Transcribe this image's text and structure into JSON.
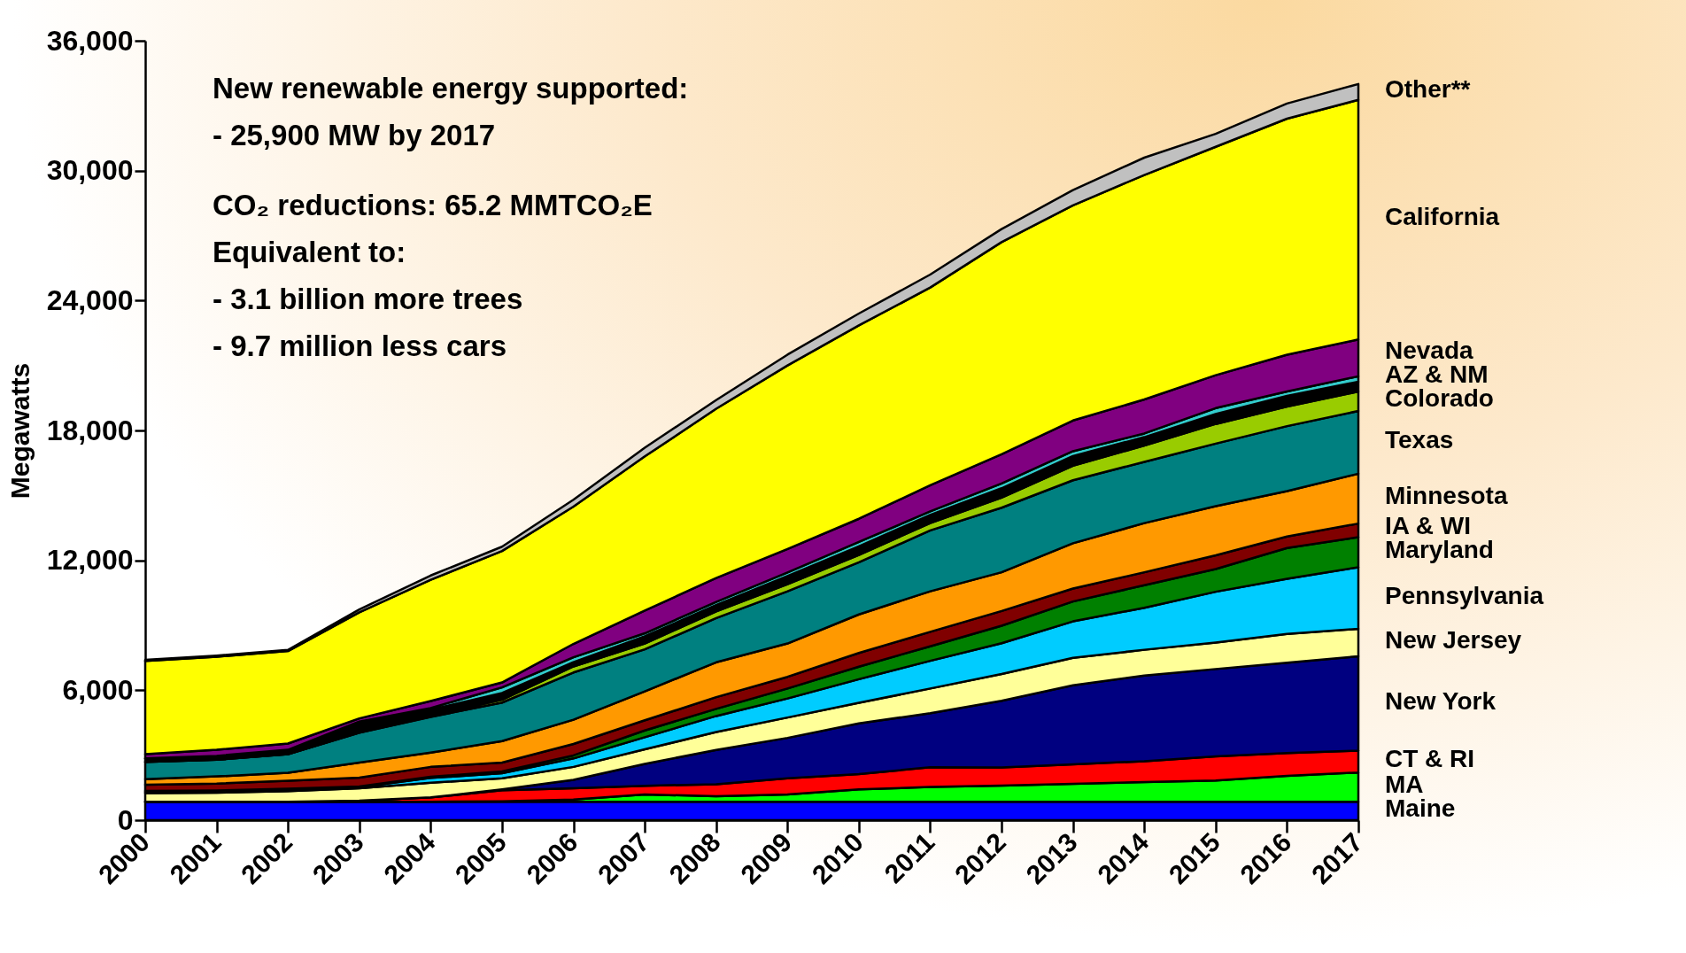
{
  "chart_data": {
    "type": "area",
    "stacked": true,
    "ylabel": "Megawatts",
    "ylim": [
      0,
      36000
    ],
    "yticks": [
      0,
      {
        "value": 6000,
        "label": "6,000"
      },
      {
        "value": 12000,
        "label": "12,000"
      },
      {
        "value": 18000,
        "label": "18,000"
      },
      {
        "value": 24000,
        "label": "24,000"
      },
      {
        "value": 30000,
        "label": "30,000"
      },
      {
        "value": 36000,
        "label": "36,000"
      }
    ],
    "legend": "right",
    "categories": [
      "2000",
      "2001",
      "2002",
      "2003",
      "2004",
      "2005",
      "2006",
      "2007",
      "2008",
      "2009",
      "2010",
      "2011",
      "2012",
      "2013",
      "2014",
      "2015",
      "2016",
      "2017"
    ],
    "annotations": [
      "New renewable energy supported:",
      "- 25,900 MW by 2017",
      "CO₂ reductions: 65.2 MMTCO₂E",
      "Equivalent to:",
      "- 3.1 billion more trees",
      "- 9.7 million less cars"
    ],
    "series": [
      {
        "name": "Maine",
        "color": "#0000ff",
        "values": [
          850,
          850,
          850,
          850,
          850,
          850,
          850,
          850,
          850,
          850,
          850,
          850,
          850,
          850,
          850,
          850,
          850,
          850
        ]
      },
      {
        "name": "MA",
        "color": "#00ff00",
        "values": [
          0,
          0,
          0,
          0,
          0,
          20,
          100,
          340,
          250,
          340,
          570,
          680,
          750,
          830,
          910,
          980,
          1200,
          1350
        ]
      },
      {
        "name": "CT & RI",
        "color": "#ff0000",
        "values": [
          0,
          0,
          0,
          50,
          200,
          510,
          520,
          400,
          560,
          740,
          710,
          910,
          830,
          900,
          960,
          1120,
          1050,
          1010
        ]
      },
      {
        "name": "New York",
        "color": "#000080",
        "values": [
          0,
          0,
          0,
          0,
          0,
          40,
          390,
          1010,
          1580,
          1870,
          2340,
          2500,
          3080,
          3650,
          3960,
          4030,
          4170,
          4360
        ]
      },
      {
        "name": "New Jersey",
        "color": "#ffff99",
        "values": [
          400,
          420,
          490,
          570,
          680,
          510,
          600,
          670,
          830,
          940,
          950,
          1140,
          1240,
          1270,
          1190,
          1220,
          1330,
          1270
        ]
      },
      {
        "name": "Pennsylvania",
        "color": "#00ccff",
        "values": [
          50,
          50,
          60,
          50,
          220,
          240,
          390,
          560,
          740,
          880,
          1090,
          1280,
          1420,
          1680,
          1940,
          2350,
          2550,
          2840
        ]
      },
      {
        "name": "Maryland",
        "color": "#008000",
        "values": [
          50,
          50,
          50,
          30,
          50,
          80,
          140,
          310,
          330,
          460,
          580,
          670,
          810,
          920,
          1040,
          1050,
          1420,
          1390
        ]
      },
      {
        "name": "IA & WI",
        "color": "#800000",
        "values": [
          290,
          320,
          370,
          410,
          460,
          410,
          530,
          470,
          540,
          540,
          630,
          670,
          680,
          600,
          600,
          630,
          530,
          630
        ]
      },
      {
        "name": "Minnesota",
        "color": "#ff9900",
        "values": [
          250,
          330,
          370,
          700,
          660,
          990,
          1120,
          1340,
          1610,
          1540,
          1780,
          1870,
          1790,
          2090,
          2270,
          2270,
          2100,
          2300
        ]
      },
      {
        "name": "Texas",
        "color": "#008080",
        "values": [
          800,
          770,
          860,
          1380,
          1650,
          1780,
          2180,
          1940,
          2040,
          2410,
          2410,
          2810,
          2980,
          2910,
          2830,
          2890,
          3000,
          2900
        ]
      },
      {
        "name": "Colorado",
        "color": "#99cc00",
        "values": [
          0,
          0,
          0,
          20,
          50,
          130,
          280,
          270,
          310,
          330,
          340,
          340,
          470,
          670,
          750,
          910,
          900,
          900
        ]
      },
      {
        "color": "#000000",
        "values": [
          160,
          160,
          150,
          440,
          280,
          310,
          200,
          330,
          290,
          370,
          400,
          380,
          430,
          450,
          390,
          460,
          500,
          450
        ]
      },
      {
        "name": "AZ & NM",
        "color": "#33cccc",
        "values": [
          0,
          20,
          50,
          50,
          80,
          260,
          220,
          140,
          150,
          170,
          200,
          160,
          220,
          220,
          170,
          270,
          200,
          250
        ]
      },
      {
        "name": "Nevada",
        "color": "#800080",
        "values": [
          200,
          280,
          290,
          150,
          320,
          230,
          620,
          1050,
          1100,
          1080,
          1070,
          1210,
          1350,
          1420,
          1570,
          1520,
          1700,
          1700
        ]
      },
      {
        "name": "California",
        "color": "#ffff00",
        "values": [
          4300,
          4300,
          4270,
          4900,
          5600,
          6070,
          6340,
          7120,
          7820,
          8480,
          8930,
          9130,
          9800,
          9940,
          10370,
          10550,
          10900,
          11070
        ]
      },
      {
        "name": "Other**",
        "color": "#c0c0c0",
        "values": [
          50,
          50,
          50,
          130,
          200,
          200,
          320,
          400,
          400,
          500,
          550,
          600,
          600,
          700,
          800,
          600,
          700,
          730
        ]
      }
    ]
  }
}
